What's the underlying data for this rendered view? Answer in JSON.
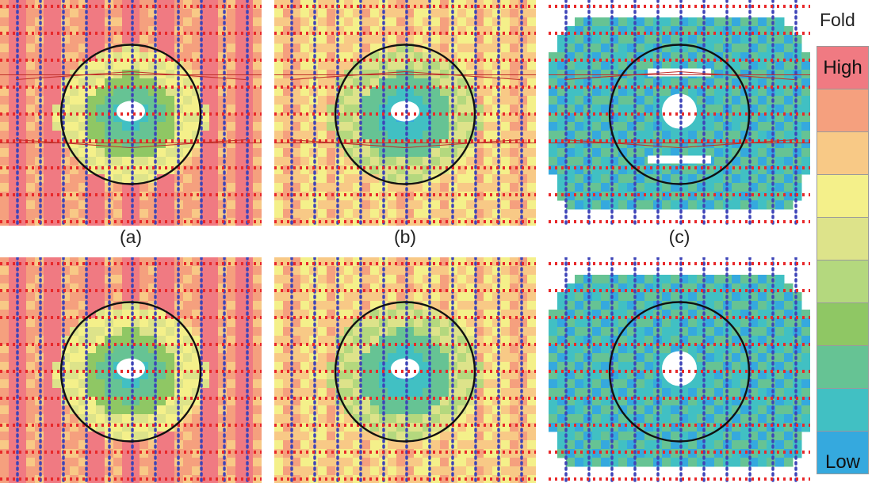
{
  "panels": [
    {
      "id": "a-top",
      "label": "(a)",
      "variant": "dense-high"
    },
    {
      "id": "b-top",
      "label": "(b)",
      "variant": "medium"
    },
    {
      "id": "c-top",
      "label": "(c)",
      "variant": "sparse-low"
    },
    {
      "id": "a-bottom",
      "label": "",
      "variant": "dense-high"
    },
    {
      "id": "b-bottom",
      "label": "",
      "variant": "medium"
    },
    {
      "id": "c-bottom",
      "label": "",
      "variant": "sparse-low"
    }
  ],
  "legend": {
    "title": "Fold",
    "high_label": "High",
    "low_label": "Low",
    "colors": [
      "#f07a82",
      "#f5a07e",
      "#f8c986",
      "#f4f08a",
      "#dde38a",
      "#b4d87e",
      "#8fc764",
      "#66c394",
      "#41c0c3",
      "#35a9de"
    ]
  },
  "colors": {
    "source_line": "#e8282a",
    "receiver_line": "#3f45b8",
    "circle": "#111111"
  }
}
